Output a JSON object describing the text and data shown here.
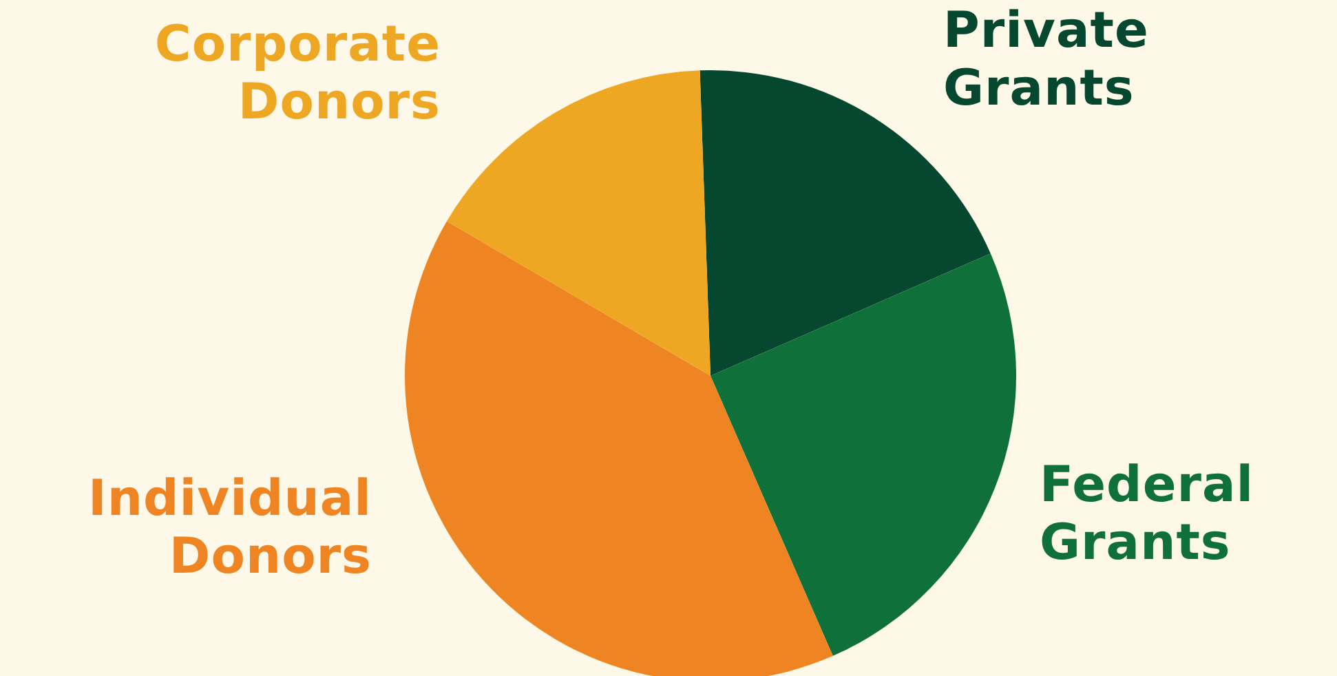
{
  "chart_data": {
    "type": "pie",
    "categories": [
      "Private Grants",
      "Federal Grants",
      "Individual Donors",
      "Corporate Donors"
    ],
    "values": [
      19,
      25,
      40,
      16
    ],
    "colors": [
      "#06472f",
      "#107039",
      "#ee8522",
      "#eea723"
    ]
  }
}
